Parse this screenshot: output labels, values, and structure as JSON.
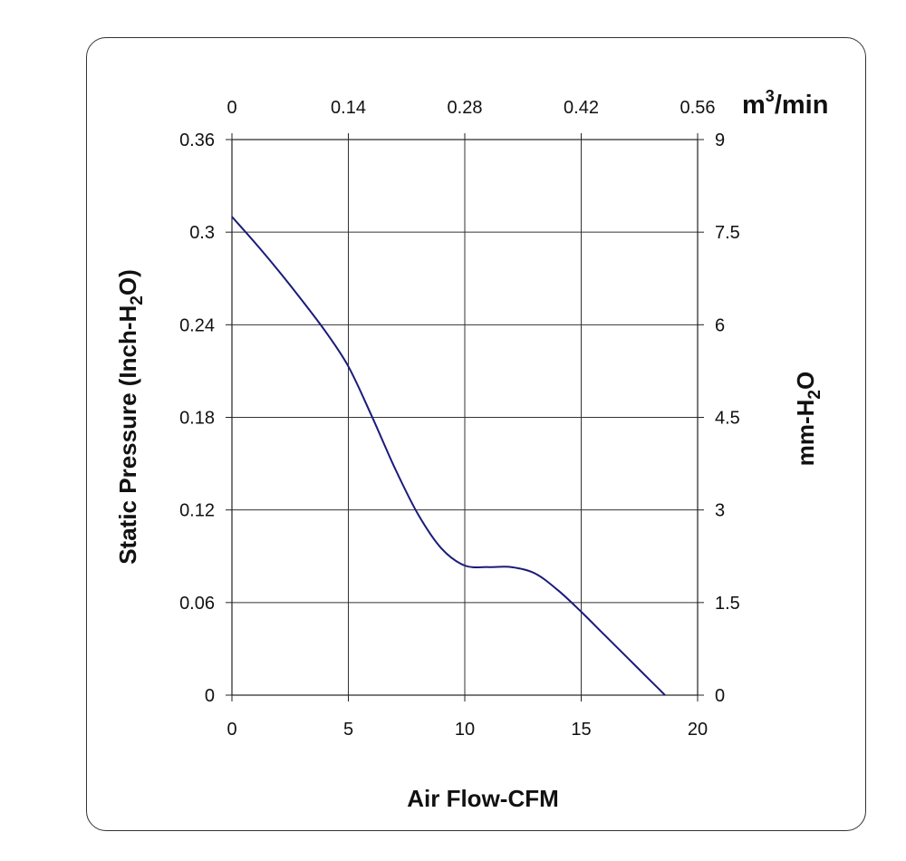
{
  "chart_data": {
    "type": "line",
    "xlabel": "Air Flow-CFM",
    "ylabel": {
      "main": "Static Pressure (Inch-H",
      "sub": "2",
      "tail": "O)"
    },
    "y2label": {
      "main": "mm-H",
      "sub": "2",
      "tail": "O"
    },
    "x2label": {
      "main": "m",
      "sup": "3",
      "tail": "/min"
    },
    "xlim": [
      0,
      20
    ],
    "ylim": [
      0,
      0.36
    ],
    "x_ticks": [
      "0",
      "5",
      "10",
      "15",
      "20"
    ],
    "y_ticks": [
      "0",
      "0.06",
      "0.12",
      "0.18",
      "0.24",
      "0.3",
      "0.36"
    ],
    "x2_ticks": [
      "0",
      "0.14",
      "0.28",
      "0.42",
      "0.56"
    ],
    "y2_ticks": [
      "0",
      "1.5",
      "3",
      "4.5",
      "6",
      "7.5",
      "9"
    ],
    "grid": true,
    "line_color": "#1a1a7a",
    "series": [
      {
        "x": [
          0,
          1,
          2,
          3,
          4,
          5,
          6,
          7,
          8,
          9,
          10,
          11,
          12,
          13,
          14,
          15,
          16,
          17,
          18,
          18.6
        ],
        "values": [
          0.31,
          0.293,
          0.275,
          0.256,
          0.236,
          0.213,
          0.181,
          0.147,
          0.117,
          0.095,
          0.084,
          0.083,
          0.083,
          0.079,
          0.068,
          0.054,
          0.039,
          0.024,
          0.009,
          0
        ]
      }
    ]
  }
}
